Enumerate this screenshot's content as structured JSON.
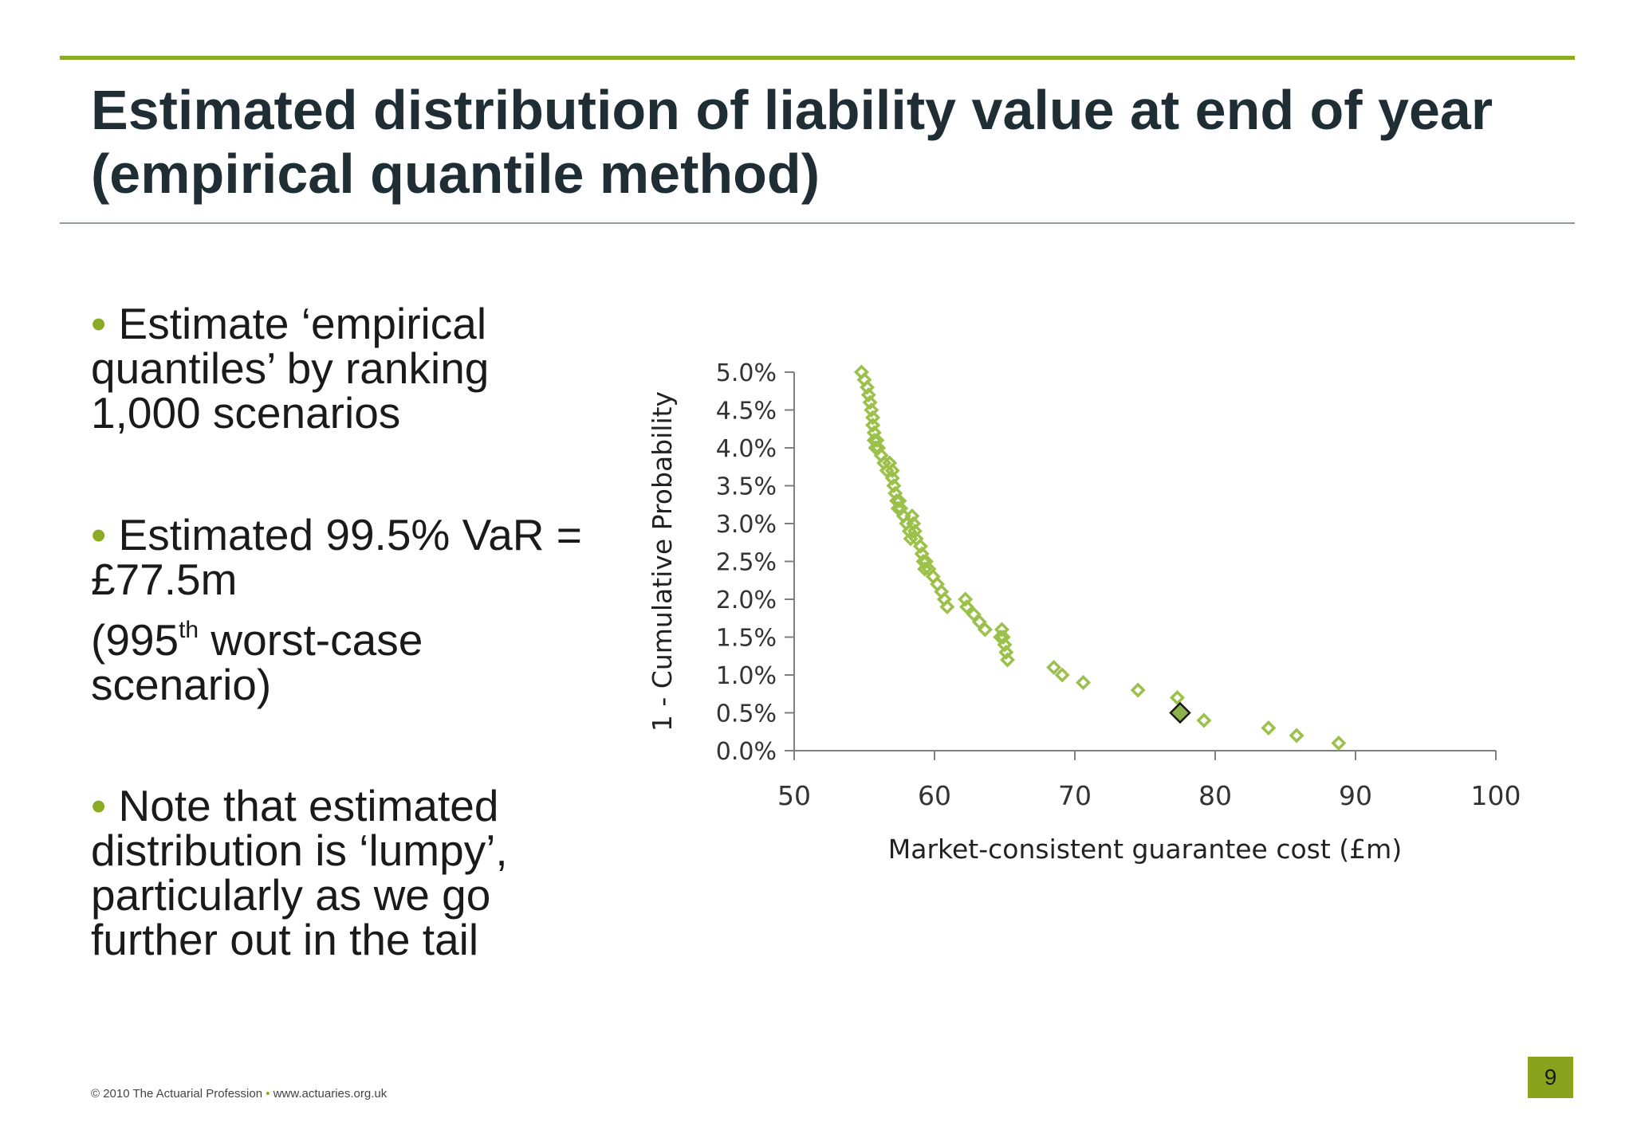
{
  "slide": {
    "title_line1": "Estimated distribution of liability value at end of year",
    "title_line2": "(empirical quantile method)",
    "bullets": {
      "b1_line1": "Estimate ‘empirical",
      "b1_line2": "quantiles’ by ranking",
      "b1_line3": "1,000 scenarios",
      "b2_line1": "Estimated 99.5% VaR =",
      "b2_line2": "£77.5m",
      "b2_note_prefix": "(995",
      "b2_note_sup": "th",
      "b2_note_suffix": " worst-case",
      "b2_note_line2": "scenario)",
      "b3_line1": "Note that estimated",
      "b3_line2": "distribution is ‘lumpy’,",
      "b3_line3": "particularly as we go",
      "b3_line4": "further out in the tail"
    },
    "bullet_glyph": "•",
    "footer_left": "© 2010 The Actuarial Profession",
    "footer_sep": "•",
    "footer_right": "www.actuaries.org.uk",
    "page_number": "9",
    "colors": {
      "accent": "#8aab24",
      "title": "#1f2d35",
      "marker": "#9bc14a",
      "highlight": "#8bb14a"
    }
  },
  "chart_data": {
    "type": "scatter",
    "xlabel": "Market-consistent guarantee cost (£m)",
    "ylabel": "1 - Cumulative Probability",
    "xlim": [
      50,
      100
    ],
    "ylim": [
      0,
      0.05
    ],
    "x_ticks": [
      "50",
      "60",
      "70",
      "80",
      "90",
      "100"
    ],
    "y_ticks": [
      "0.0%",
      "0.5%",
      "1.0%",
      "1.5%",
      "2.0%",
      "2.5%",
      "3.0%",
      "3.5%",
      "4.0%",
      "4.5%",
      "5.0%"
    ],
    "grid": false,
    "legend": "none",
    "series": [
      {
        "marker": "hollow-diamond",
        "x": [
          54.8,
          55.0,
          55.2,
          55.3,
          55.4,
          55.5,
          55.6,
          55.6,
          55.7,
          55.7,
          55.8,
          55.9,
          56.0,
          56.2,
          56.4,
          56.6,
          56.8,
          57.0,
          57.0,
          57.1,
          57.2,
          57.3,
          57.4,
          57.5,
          57.6,
          57.8,
          58.0,
          58.2,
          58.3,
          58.4,
          58.5,
          58.6,
          58.7,
          59.0,
          59.1,
          59.2,
          59.3,
          59.4,
          59.6,
          59.9,
          60.2,
          60.5,
          60.7,
          60.9,
          62.2,
          62.3,
          62.8,
          63.2,
          63.6,
          64.7,
          64.8,
          64.9,
          65.0,
          65.1,
          65.2,
          68.5,
          69.1,
          70.6,
          74.5,
          77.3,
          79.2,
          83.8,
          85.8,
          88.8
        ],
        "y": [
          0.05,
          0.049,
          0.048,
          0.047,
          0.046,
          0.045,
          0.044,
          0.043,
          0.042,
          0.041,
          0.04,
          0.041,
          0.04,
          0.039,
          0.038,
          0.037,
          0.038,
          0.037,
          0.036,
          0.035,
          0.034,
          0.033,
          0.032,
          0.033,
          0.032,
          0.031,
          0.03,
          0.029,
          0.028,
          0.031,
          0.03,
          0.029,
          0.028,
          0.027,
          0.026,
          0.025,
          0.024,
          0.025,
          0.024,
          0.023,
          0.022,
          0.021,
          0.02,
          0.019,
          0.02,
          0.019,
          0.018,
          0.017,
          0.016,
          0.015,
          0.016,
          0.015,
          0.014,
          0.013,
          0.012,
          0.011,
          0.01,
          0.009,
          0.008,
          0.007,
          0.004,
          0.003,
          0.002,
          0.001
        ]
      },
      {
        "marker": "filled-diamond",
        "x": [
          77.5
        ],
        "y": [
          0.005
        ]
      }
    ]
  }
}
